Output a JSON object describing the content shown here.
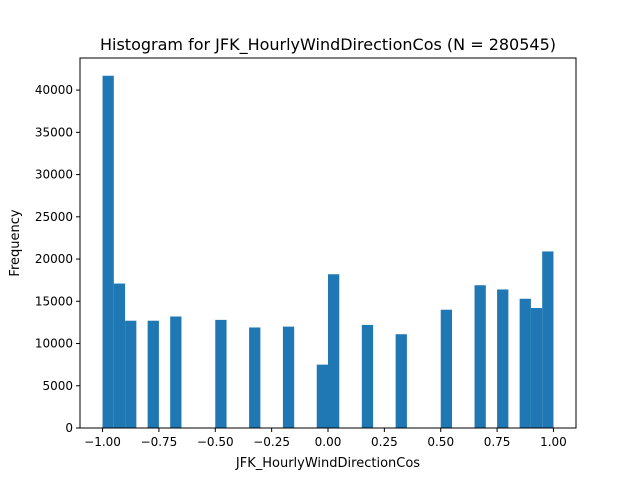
{
  "chart_data": {
    "type": "bar",
    "title": "Histogram for JFK_HourlyWindDirectionCos (N = 280545)",
    "xlabel": "JFK_HourlyWindDirectionCos",
    "ylabel": "Frequency",
    "xlim": [
      -1.1,
      1.1
    ],
    "ylim": [
      0,
      43800
    ],
    "grid": false,
    "bar_color": "#1f77b4",
    "bins": 40,
    "bin_range": [
      -1.0,
      1.0
    ],
    "x_ticks": [
      -1.0,
      -0.75,
      -0.5,
      -0.25,
      0.0,
      0.25,
      0.5,
      0.75,
      1.0
    ],
    "x_tick_labels": [
      "−1.00",
      "−0.75",
      "−0.50",
      "−0.25",
      "0.00",
      "0.25",
      "0.50",
      "0.75",
      "1.00"
    ],
    "y_ticks": [
      0,
      5000,
      10000,
      15000,
      20000,
      25000,
      30000,
      35000,
      40000
    ],
    "y_tick_labels": [
      "0",
      "5000",
      "10000",
      "15000",
      "20000",
      "25000",
      "30000",
      "35000",
      "40000"
    ],
    "bars": [
      {
        "x0": -1.0,
        "x1": -0.95,
        "value": 41700
      },
      {
        "x0": -0.95,
        "x1": -0.9,
        "value": 17100
      },
      {
        "x0": -0.9,
        "x1": -0.85,
        "value": 12700
      },
      {
        "x0": -0.8,
        "x1": -0.75,
        "value": 12700
      },
      {
        "x0": -0.7,
        "x1": -0.65,
        "value": 13200
      },
      {
        "x0": -0.5,
        "x1": -0.45,
        "value": 12800
      },
      {
        "x0": -0.35,
        "x1": -0.3,
        "value": 11900
      },
      {
        "x0": -0.2,
        "x1": -0.15,
        "value": 12000
      },
      {
        "x0": -0.05,
        "x1": 0.0,
        "value": 7500
      },
      {
        "x0": 0.0,
        "x1": 0.05,
        "value": 18200
      },
      {
        "x0": 0.15,
        "x1": 0.2,
        "value": 12200
      },
      {
        "x0": 0.3,
        "x1": 0.35,
        "value": 11100
      },
      {
        "x0": 0.5,
        "x1": 0.55,
        "value": 14000
      },
      {
        "x0": 0.65,
        "x1": 0.7,
        "value": 16900
      },
      {
        "x0": 0.75,
        "x1": 0.8,
        "value": 16400
      },
      {
        "x0": 0.85,
        "x1": 0.9,
        "value": 15300
      },
      {
        "x0": 0.9,
        "x1": 0.95,
        "value": 14200
      },
      {
        "x0": 0.95,
        "x1": 1.0,
        "value": 20900
      }
    ]
  }
}
